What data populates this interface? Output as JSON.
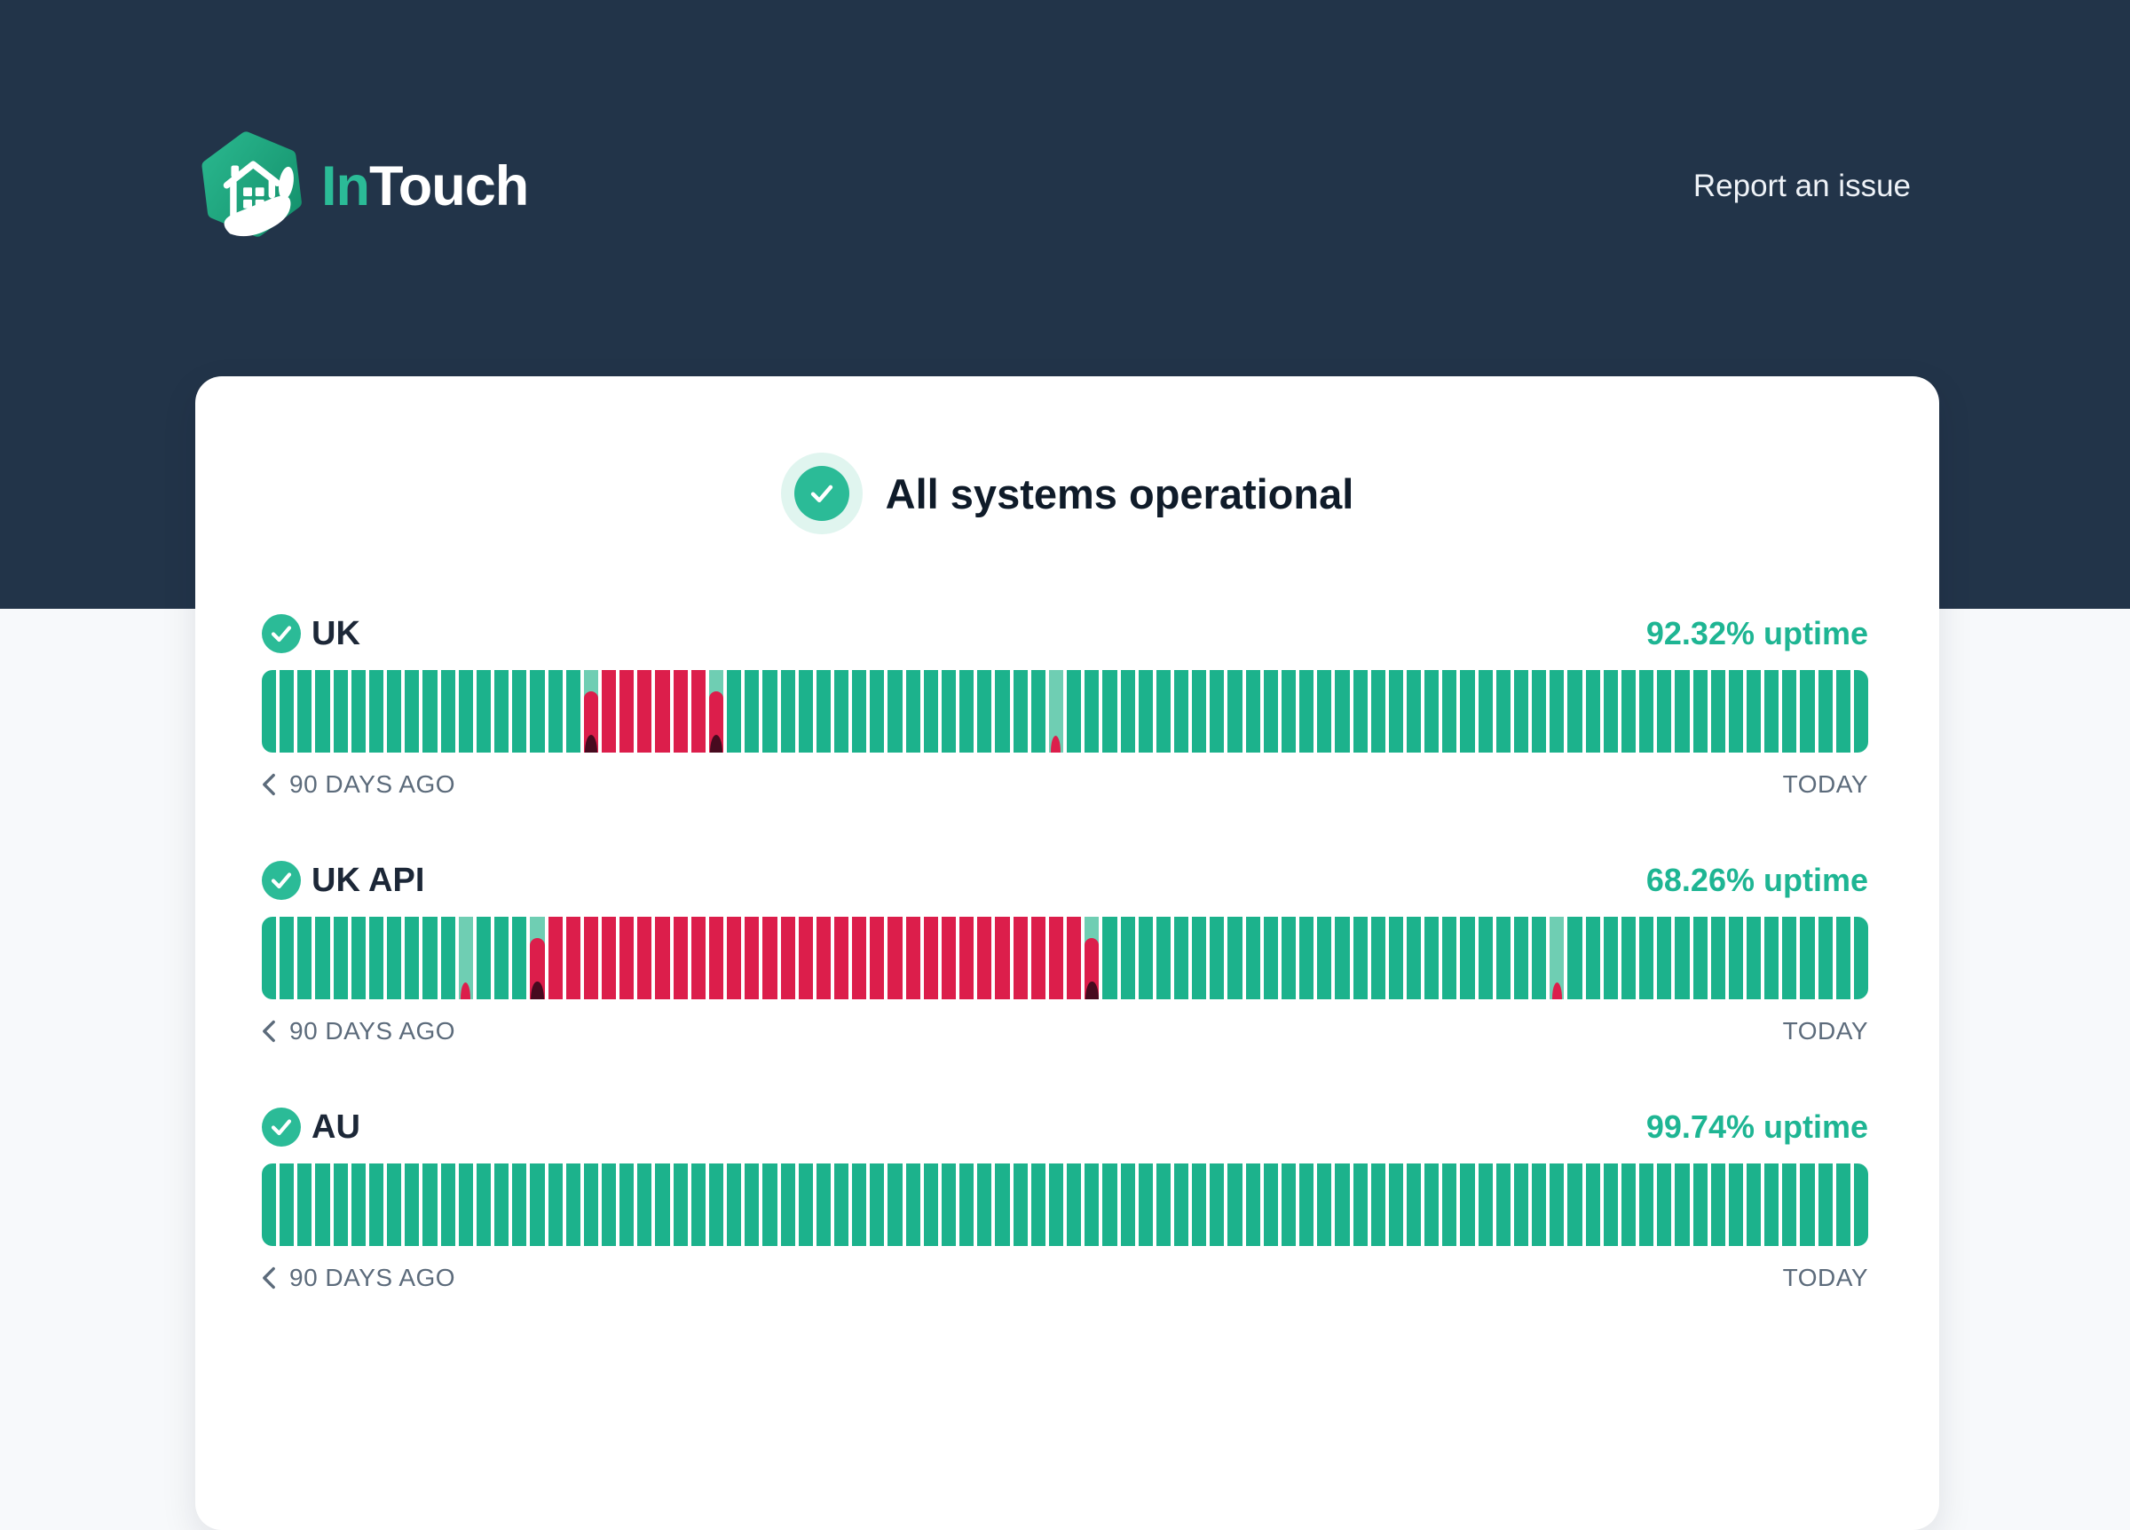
{
  "brand": {
    "name_prefix": "In",
    "name_suffix": "Touch"
  },
  "nav": {
    "report_link": "Report an issue"
  },
  "status_banner": {
    "label": "All systems operational"
  },
  "timeline": {
    "left_label": "90 DAYS AGO",
    "right_label": "TODAY",
    "days": 90
  },
  "legend": {
    "u": "operational",
    "p": "major-outage-partial-day",
    "d": "full-outage-day",
    "m": "minor-outage-partial-day"
  },
  "services": [
    {
      "name": "UK",
      "uptime": "92.32% uptime",
      "bars": "uuuuuuuuuuuuuuuuuupddddddpuuuuuuuuuuuuuuuuuumuuuuuuuuuuuuuuuuuuuuuuuuuuuuuuuuuuuuuuuuuuuuu"
    },
    {
      "name": "UK API",
      "uptime": "68.26% uptime",
      "bars": "uuuuuuuuuuumuuupddddddddddddddddddddddddddddddpuuuuuuuuuuuuuuuuuuuuuuuuumuuuuuuuuuuuuuuuuu"
    },
    {
      "name": "AU",
      "uptime": "99.74% uptime",
      "bars": "uuuuuuuuuuuuuuuuuuuuuuuuuuuuuuuuuuuuuuuuuuuuuuuuuuuuuuuuuuuuuuuuuuuuuuuuuuuuuuuuuuuuuuuuuu"
    }
  ],
  "colors": {
    "navy": "#223449",
    "page_bg": "#f7f9fb",
    "card_bg": "#ffffff",
    "green": "#2bbb97",
    "uptime_text": "#1eb593",
    "bar_up": "#1cb28c",
    "bar_mint": "#6fceb3",
    "bar_down": "#dc1e4b",
    "bar_dark": "#470a1f",
    "halo": "#e0f5ef",
    "muted": "#5c6b7b",
    "heading": "#0f1b29",
    "name_color": "#1c2737",
    "link": "#eef2f7"
  }
}
